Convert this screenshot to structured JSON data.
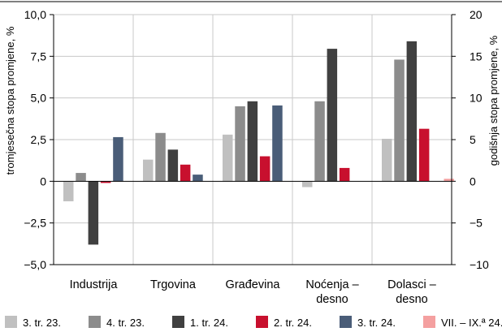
{
  "chart_data": {
    "type": "bar",
    "categories": [
      "Industrija",
      "Trgovina",
      "Građevina",
      "Noćenja – desno",
      "Dolasci – desno"
    ],
    "category_lines": [
      [
        "Industrija"
      ],
      [
        "Trgovina"
      ],
      [
        "Građevina"
      ],
      [
        "Noćenja –",
        "desno"
      ],
      [
        "Dolasci –",
        "desno"
      ]
    ],
    "series": [
      {
        "name": "3. tr. 23.",
        "color": "#c0c0c0",
        "values": [
          -1.2,
          1.3,
          2.8,
          -0.35,
          2.55
        ]
      },
      {
        "name": "4. tr. 23.",
        "color": "#8c8c8c",
        "values": [
          0.5,
          2.9,
          4.5,
          4.8,
          7.3
        ]
      },
      {
        "name": "1. tr. 24.",
        "color": "#404040",
        "values": [
          -3.8,
          1.9,
          4.8,
          7.95,
          8.4
        ]
      },
      {
        "name": "2. tr. 24.",
        "color": "#c8102e",
        "values": [
          -0.1,
          1.0,
          1.5,
          0.8,
          3.15
        ]
      },
      {
        "name": "3. tr. 24.",
        "color": "#4a5d78",
        "values": [
          2.65,
          0.4,
          4.55,
          null,
          null
        ]
      },
      {
        "name": "VII. – IX.ª 24.",
        "color": "#f4a0a0",
        "values": [
          null,
          null,
          null,
          null,
          0.15
        ]
      }
    ],
    "y_left": {
      "label": "tromjesečna stopa promjene, %",
      "ylim": [
        -5,
        10
      ],
      "ticks": [
        "10,0",
        "7,5",
        "5,0",
        "2,5",
        "0",
        "−2,5",
        "−5,0"
      ]
    },
    "y_right": {
      "label": "godišnja stopa promjene, %",
      "ylim": [
        -10,
        20
      ],
      "ticks": [
        "20",
        "15",
        "10",
        "5",
        "0",
        "−5",
        "−10"
      ]
    },
    "grid": true,
    "legend_position": "bottom"
  }
}
